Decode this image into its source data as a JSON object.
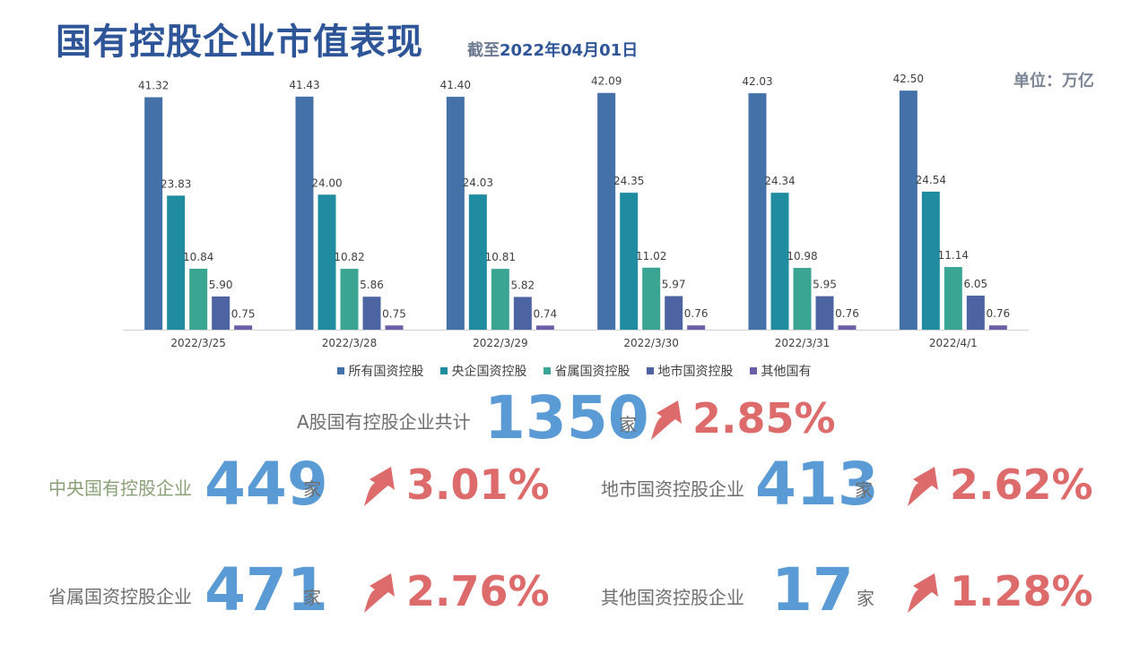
{
  "header": {
    "title": "国有控股企业市值表现",
    "subtitle_prefix": "截至",
    "subtitle_date": "2022年04月01日",
    "unit": "单位：万亿"
  },
  "chart_data": {
    "type": "bar",
    "categories": [
      "2022/3/25",
      "2022/3/28",
      "2022/3/29",
      "2022/3/30",
      "2022/3/31",
      "2022/4/1"
    ],
    "series": [
      {
        "name": "所有国资控股",
        "color": "#4472a8",
        "values": [
          41.32,
          41.43,
          41.4,
          42.09,
          42.03,
          42.5
        ],
        "labels": [
          "41.32",
          "41.43",
          "41.40",
          "42.09",
          "42.03",
          "42.50"
        ]
      },
      {
        "name": "央企国资控股",
        "color": "#1f8ca0",
        "values": [
          23.83,
          24.0,
          24.03,
          24.35,
          24.34,
          24.54
        ],
        "labels": [
          "23.83",
          "24.00",
          "24.03",
          "24.35",
          "24.34",
          "24.54"
        ]
      },
      {
        "name": "省属国资控股",
        "color": "#3ba594",
        "values": [
          10.84,
          10.82,
          10.81,
          11.02,
          10.98,
          11.14
        ],
        "labels": [
          "10.84",
          "10.82",
          "10.81",
          "11.02",
          "10.98",
          "11.14"
        ]
      },
      {
        "name": "地市国资控股",
        "color": "#4d64a3",
        "values": [
          5.9,
          5.86,
          5.82,
          5.97,
          5.95,
          6.05
        ],
        "labels": [
          "5.90",
          "5.86",
          "5.82",
          "5.97",
          "5.95",
          "6.05"
        ]
      },
      {
        "name": "其他国有",
        "color": "#6b5ea8",
        "values": [
          0.75,
          0.75,
          0.74,
          0.76,
          0.76,
          0.76
        ],
        "labels": [
          "0.75",
          "0.75",
          "0.74",
          "0.76",
          "0.76",
          "0.76"
        ]
      }
    ],
    "ylim": [
      0,
      43
    ],
    "grid": false,
    "legend_position": "bottom"
  },
  "stats": {
    "total": {
      "label": "A股国有控股企业共计",
      "count": "1350",
      "unit": "家",
      "pct": "2.85%"
    },
    "central": {
      "label": "中央国有控股企业",
      "count": "449",
      "unit": "家",
      "pct": "3.01%"
    },
    "municipal": {
      "label": "地市国资控股企业",
      "count": "413",
      "unit": "家",
      "pct": "2.62%"
    },
    "provincial": {
      "label": "省属国资控股企业",
      "count": "471",
      "unit": "家",
      "pct": "2.76%"
    },
    "other": {
      "label": "其他国资控股企业",
      "count": "17",
      "unit": "家",
      "pct": "1.28%"
    }
  }
}
